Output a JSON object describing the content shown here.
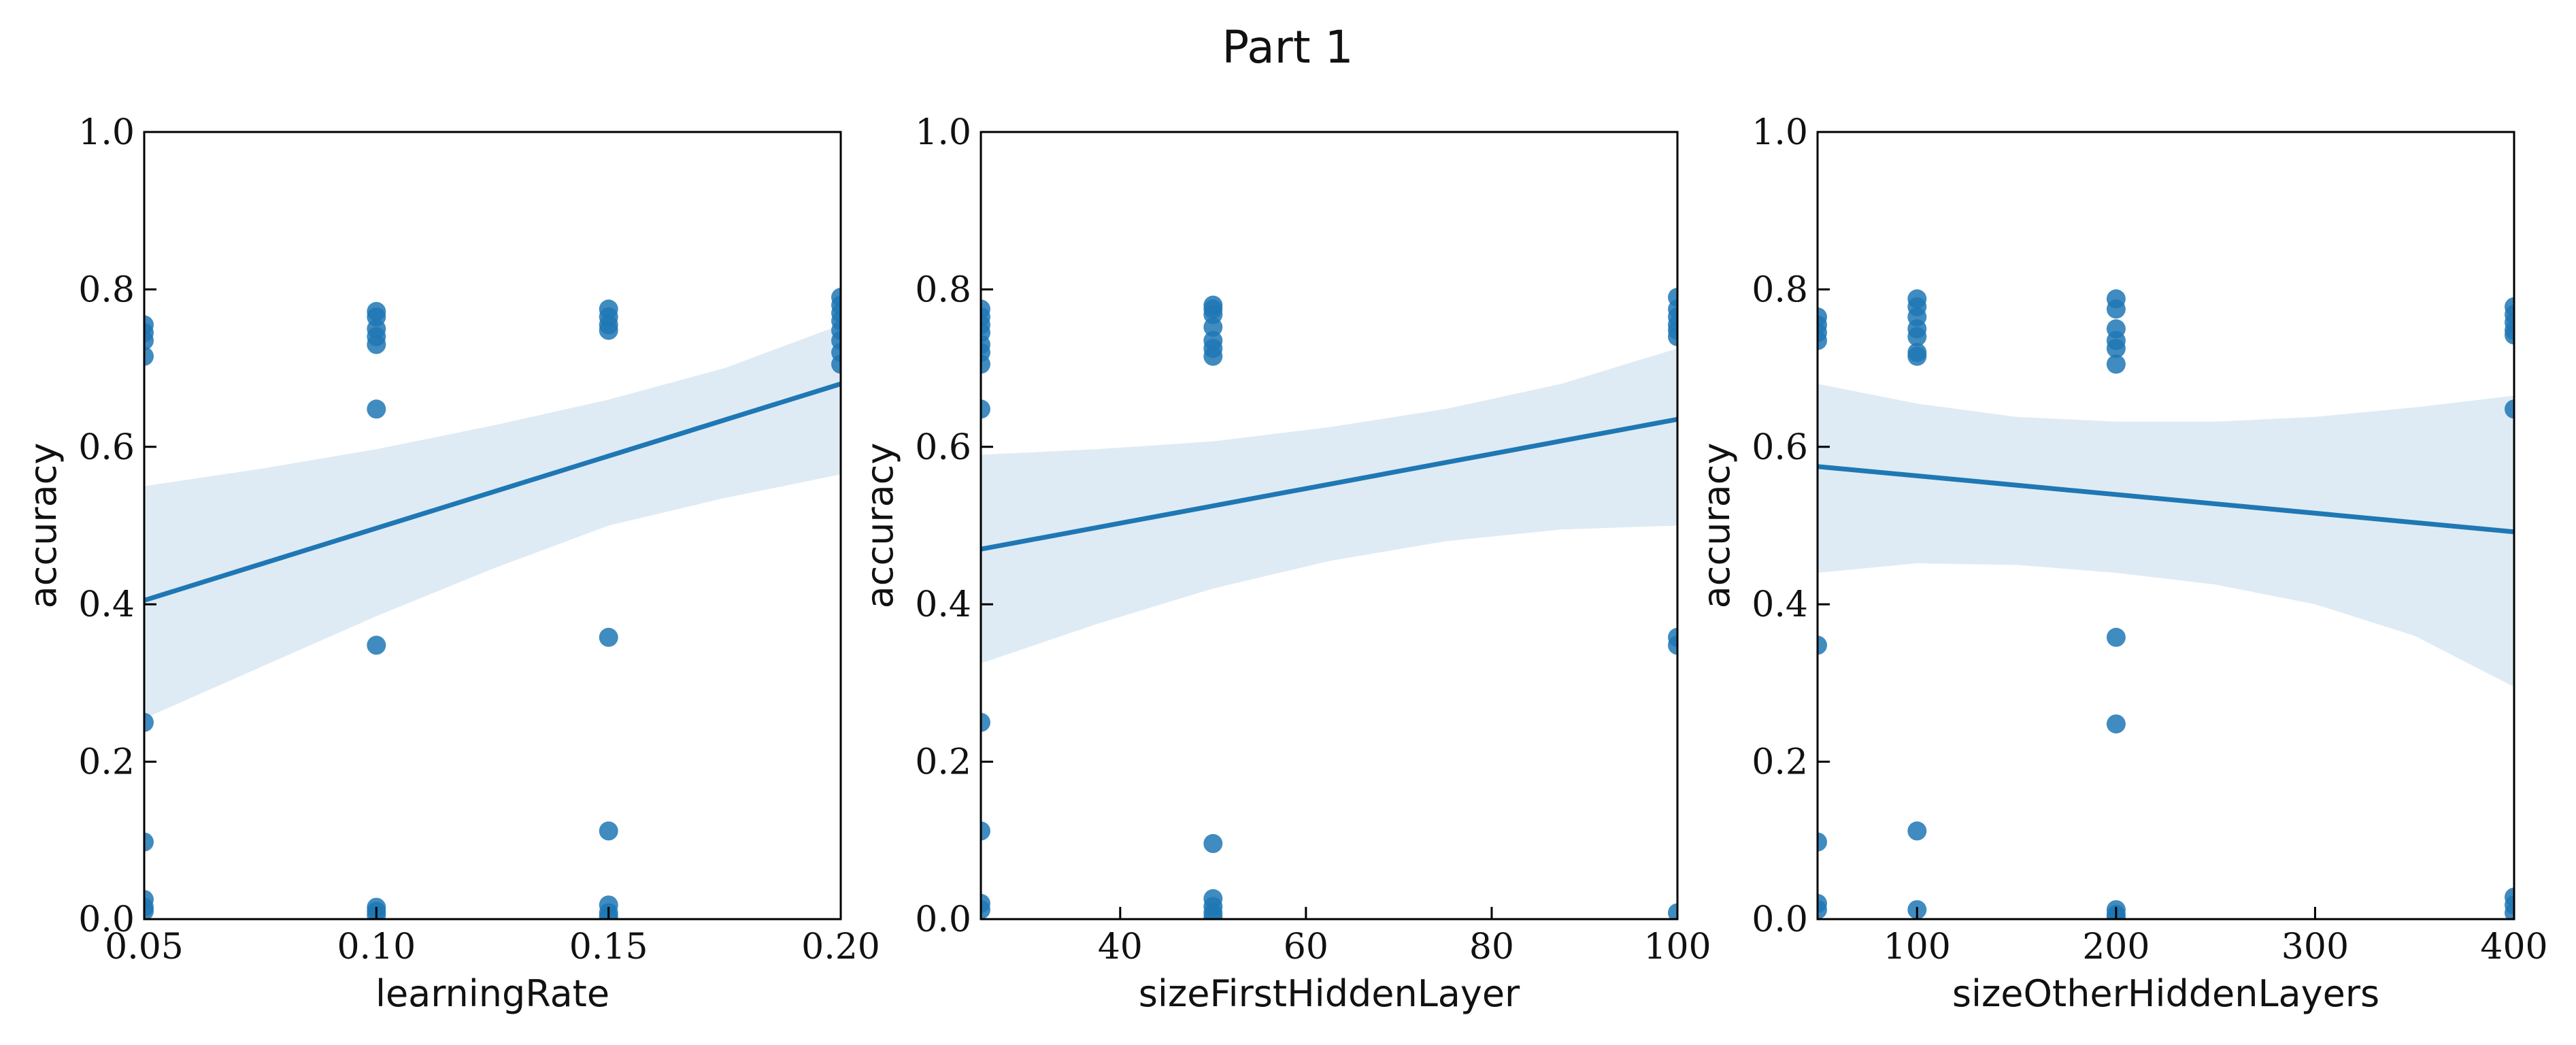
{
  "figure": {
    "title": "Part 1"
  },
  "colors": {
    "point": "#1f77b4",
    "line": "#1f77b4",
    "band": "#1f77b4"
  },
  "chart_data": [
    {
      "type": "scatter",
      "title": "",
      "xlabel": "learningRate",
      "ylabel": "accuracy",
      "xlim": [
        0.05,
        0.2
      ],
      "ylim": [
        0.0,
        1.0
      ],
      "xticks": [
        0.05,
        0.1,
        0.15,
        0.2
      ],
      "xtick_labels": [
        "0.05",
        "0.10",
        "0.15",
        "0.20"
      ],
      "yticks": [
        0.0,
        0.2,
        0.4,
        0.6,
        0.8,
        1.0
      ],
      "ytick_labels": [
        "0.0",
        "0.2",
        "0.4",
        "0.6",
        "0.8",
        "1.0"
      ],
      "grid": false,
      "points": [
        [
          0.05,
          0.755
        ],
        [
          0.05,
          0.745
        ],
        [
          0.05,
          0.735
        ],
        [
          0.05,
          0.715
        ],
        [
          0.05,
          0.25
        ],
        [
          0.05,
          0.098
        ],
        [
          0.05,
          0.025
        ],
        [
          0.05,
          0.015
        ],
        [
          0.05,
          0.01
        ],
        [
          0.1,
          0.772
        ],
        [
          0.1,
          0.765
        ],
        [
          0.1,
          0.75
        ],
        [
          0.1,
          0.74
        ],
        [
          0.1,
          0.73
        ],
        [
          0.1,
          0.648
        ],
        [
          0.1,
          0.348
        ],
        [
          0.1,
          0.015
        ],
        [
          0.1,
          0.01
        ],
        [
          0.1,
          0.005
        ],
        [
          0.15,
          0.775
        ],
        [
          0.15,
          0.765
        ],
        [
          0.15,
          0.755
        ],
        [
          0.15,
          0.748
        ],
        [
          0.15,
          0.358
        ],
        [
          0.15,
          0.112
        ],
        [
          0.15,
          0.018
        ],
        [
          0.15,
          0.008
        ],
        [
          0.15,
          0.003
        ],
        [
          0.2,
          0.79
        ],
        [
          0.2,
          0.78
        ],
        [
          0.2,
          0.77
        ],
        [
          0.2,
          0.76
        ],
        [
          0.2,
          0.748
        ],
        [
          0.2,
          0.735
        ],
        [
          0.2,
          0.72
        ],
        [
          0.2,
          0.705
        ]
      ],
      "regression": {
        "x": [
          0.05,
          0.2
        ],
        "y": [
          0.405,
          0.68
        ]
      },
      "ci_band": {
        "x": [
          0.05,
          0.075,
          0.1,
          0.125,
          0.15,
          0.175,
          0.2
        ],
        "upper": [
          0.55,
          0.572,
          0.597,
          0.627,
          0.66,
          0.7,
          0.755
        ],
        "lower": [
          0.255,
          0.32,
          0.385,
          0.445,
          0.5,
          0.535,
          0.565
        ]
      }
    },
    {
      "type": "scatter",
      "title": "",
      "xlabel": "sizeFirstHiddenLayer",
      "ylabel": "accuracy",
      "xlim": [
        25,
        100
      ],
      "ylim": [
        0.0,
        1.0
      ],
      "xticks": [
        40,
        60,
        80,
        100
      ],
      "xtick_labels": [
        "40",
        "60",
        "80",
        "100"
      ],
      "yticks": [
        0.0,
        0.2,
        0.4,
        0.6,
        0.8,
        1.0
      ],
      "ytick_labels": [
        "0.0",
        "0.2",
        "0.4",
        "0.6",
        "0.8",
        "1.0"
      ],
      "grid": false,
      "points": [
        [
          25,
          0.775
        ],
        [
          25,
          0.765
        ],
        [
          25,
          0.755
        ],
        [
          25,
          0.745
        ],
        [
          25,
          0.73
        ],
        [
          25,
          0.72
        ],
        [
          25,
          0.705
        ],
        [
          25,
          0.648
        ],
        [
          25,
          0.25
        ],
        [
          25,
          0.112
        ],
        [
          25,
          0.02
        ],
        [
          25,
          0.012
        ],
        [
          50,
          0.78
        ],
        [
          50,
          0.775
        ],
        [
          50,
          0.768
        ],
        [
          50,
          0.752
        ],
        [
          50,
          0.735
        ],
        [
          50,
          0.725
        ],
        [
          50,
          0.715
        ],
        [
          50,
          0.096
        ],
        [
          50,
          0.026
        ],
        [
          50,
          0.016
        ],
        [
          50,
          0.008
        ],
        [
          50,
          0.002
        ],
        [
          100,
          0.79
        ],
        [
          100,
          0.775
        ],
        [
          100,
          0.765
        ],
        [
          100,
          0.755
        ],
        [
          100,
          0.748
        ],
        [
          100,
          0.74
        ],
        [
          100,
          0.358
        ],
        [
          100,
          0.348
        ],
        [
          100,
          0.008
        ]
      ],
      "regression": {
        "x": [
          25,
          100
        ],
        "y": [
          0.47,
          0.635
        ]
      },
      "ci_band": {
        "x": [
          25,
          37.5,
          50,
          62.5,
          75,
          87.5,
          100
        ],
        "upper": [
          0.59,
          0.597,
          0.607,
          0.625,
          0.648,
          0.68,
          0.725
        ],
        "lower": [
          0.325,
          0.375,
          0.42,
          0.455,
          0.48,
          0.495,
          0.5
        ]
      }
    },
    {
      "type": "scatter",
      "title": "",
      "xlabel": "sizeOtherHiddenLayers",
      "ylabel": "accuracy",
      "xlim": [
        50,
        400
      ],
      "ylim": [
        0.0,
        1.0
      ],
      "xticks": [
        100,
        200,
        300,
        400
      ],
      "xtick_labels": [
        "100",
        "200",
        "300",
        "400"
      ],
      "yticks": [
        0.0,
        0.2,
        0.4,
        0.6,
        0.8,
        1.0
      ],
      "ytick_labels": [
        "0.0",
        "0.2",
        "0.4",
        "0.6",
        "0.8",
        "1.0"
      ],
      "grid": false,
      "points": [
        [
          50,
          0.765
        ],
        [
          50,
          0.755
        ],
        [
          50,
          0.745
        ],
        [
          50,
          0.735
        ],
        [
          50,
          0.348
        ],
        [
          50,
          0.098
        ],
        [
          50,
          0.02
        ],
        [
          50,
          0.012
        ],
        [
          100,
          0.788
        ],
        [
          100,
          0.778
        ],
        [
          100,
          0.765
        ],
        [
          100,
          0.75
        ],
        [
          100,
          0.74
        ],
        [
          100,
          0.72
        ],
        [
          100,
          0.715
        ],
        [
          100,
          0.112
        ],
        [
          100,
          0.012
        ],
        [
          200,
          0.788
        ],
        [
          200,
          0.775
        ],
        [
          200,
          0.75
        ],
        [
          200,
          0.735
        ],
        [
          200,
          0.725
        ],
        [
          200,
          0.705
        ],
        [
          200,
          0.358
        ],
        [
          200,
          0.248
        ],
        [
          200,
          0.012
        ],
        [
          200,
          0.006
        ],
        [
          200,
          0.002
        ],
        [
          400,
          0.778
        ],
        [
          400,
          0.768
        ],
        [
          400,
          0.758
        ],
        [
          400,
          0.748
        ],
        [
          400,
          0.742
        ],
        [
          400,
          0.648
        ],
        [
          400,
          0.028
        ],
        [
          400,
          0.018
        ],
        [
          400,
          0.008
        ]
      ],
      "regression": {
        "x": [
          50,
          400
        ],
        "y": [
          0.575,
          0.492
        ]
      },
      "ci_band": {
        "x": [
          50,
          100,
          150,
          200,
          250,
          300,
          350,
          400
        ],
        "upper": [
          0.68,
          0.655,
          0.638,
          0.632,
          0.632,
          0.638,
          0.65,
          0.665
        ],
        "lower": [
          0.44,
          0.452,
          0.45,
          0.44,
          0.425,
          0.4,
          0.36,
          0.295
        ]
      }
    }
  ]
}
